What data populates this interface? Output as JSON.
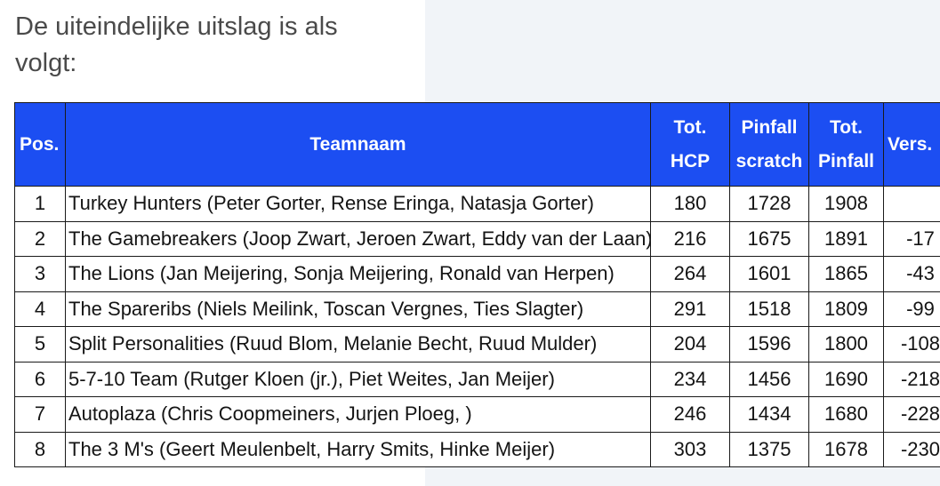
{
  "intro": {
    "text": "De uiteindelijke uitslag is als volgt:"
  },
  "colors": {
    "header_bg": "#1c4ef2",
    "header_text": "#ffffff",
    "background_panel": "#f1f4f8"
  },
  "table": {
    "headers": {
      "pos": "Pos.",
      "team": "Teamnaam",
      "hcp_line1": "Tot.",
      "hcp_line2": "HCP",
      "scratch_line1": "Pinfall",
      "scratch_line2": "scratch",
      "total_line1": "Tot.",
      "total_line2": "Pinfall",
      "vers": "Vers."
    },
    "rows": [
      {
        "pos": "1",
        "team": "Turkey Hunters (Peter Gorter, Rense Eringa, Natasja Gorter)",
        "hcp": "180",
        "scratch": "1728",
        "total": "1908",
        "vers": ""
      },
      {
        "pos": "2",
        "team": "The Gamebreakers (Joop Zwart, Jeroen Zwart, Eddy van der Laan)",
        "hcp": "216",
        "scratch": "1675",
        "total": "1891",
        "vers": "-17"
      },
      {
        "pos": "3",
        "team": "The Lions (Jan Meijering, Sonja Meijering, Ronald van Herpen)",
        "hcp": "264",
        "scratch": "1601",
        "total": "1865",
        "vers": "-43"
      },
      {
        "pos": "4",
        "team": "The Spareribs (Niels Meilink, Toscan Vergnes, Ties Slagter)",
        "hcp": "291",
        "scratch": "1518",
        "total": "1809",
        "vers": "-99"
      },
      {
        "pos": "5",
        "team": "Split Personalities (Ruud Blom, Melanie Becht, Ruud Mulder)",
        "hcp": "204",
        "scratch": "1596",
        "total": "1800",
        "vers": "-108"
      },
      {
        "pos": "6",
        "team": "5-7-10 Team (Rutger Kloen (jr.), Piet Weites, Jan Meijer)",
        "hcp": "234",
        "scratch": "1456",
        "total": "1690",
        "vers": "-218"
      },
      {
        "pos": "7",
        "team": "Autoplaza (Chris Coopmeiners, Jurjen Ploeg, )",
        "hcp": "246",
        "scratch": "1434",
        "total": "1680",
        "vers": "-228"
      },
      {
        "pos": "8",
        "team": "The 3 M's (Geert Meulenbelt, Harry Smits, Hinke Meijer)",
        "hcp": "303",
        "scratch": "1375",
        "total": "1678",
        "vers": "-230"
      }
    ]
  }
}
